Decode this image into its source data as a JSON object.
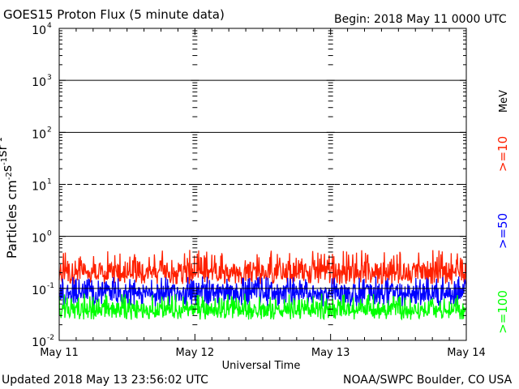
{
  "header": {
    "title": "GOES15 Proton Flux (5 minute data)",
    "begin": "Begin: 2018 May 11 0000 UTC"
  },
  "footer": {
    "updated": "Updated 2018 May 13 23:56:02 UTC",
    "source": "NOAA/SWPC Boulder, CO USA"
  },
  "chart_data": {
    "type": "line",
    "title": "GOES15 Proton Flux (5 minute data)",
    "xlabel": "Universal Time",
    "ylabel": "Particles cm-2s-1sr-1",
    "yscale": "log",
    "ylim": [
      0.01,
      10000
    ],
    "y_ticks": [
      {
        "value": 10000,
        "base": "10",
        "exp": "4"
      },
      {
        "value": 1000,
        "base": "10",
        "exp": "3"
      },
      {
        "value": 100,
        "base": "10",
        "exp": "2"
      },
      {
        "value": 10,
        "base": "10",
        "exp": "1"
      },
      {
        "value": 1,
        "base": "10",
        "exp": "0"
      },
      {
        "value": 0.1,
        "base": "10",
        "exp": "-1"
      },
      {
        "value": 0.01,
        "base": "10",
        "exp": "-2"
      }
    ],
    "x_ticks": [
      "May 11",
      "May 12",
      "May 13",
      "May 14"
    ],
    "xlim": [
      "2018-05-11 00:00",
      "2018-05-14 00:00"
    ],
    "grid": true,
    "threshold_lines": [
      {
        "value": 10,
        "style": "dashed"
      },
      {
        "value": 1,
        "style": "solid"
      }
    ],
    "legend_unit": "MeV",
    "series": [
      {
        "name": ">=10",
        "color": "#ff2000",
        "typical": 0.22,
        "min": 0.12,
        "max": 0.55
      },
      {
        "name": ">=50",
        "color": "#0000ff",
        "typical": 0.085,
        "min": 0.045,
        "max": 0.17
      },
      {
        "name": ">=100",
        "color": "#00ff00",
        "typical": 0.04,
        "min": 0.025,
        "max": 0.08
      }
    ]
  },
  "colors": {
    "axis": "#000000",
    "background": "#ffffff"
  }
}
